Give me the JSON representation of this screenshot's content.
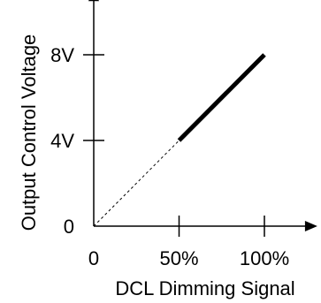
{
  "chart_data": {
    "type": "line",
    "xlabel": "DCL Dimming Signal",
    "ylabel": "Output Control Voltage",
    "x_ticks": [
      {
        "value": 0,
        "label": "0"
      },
      {
        "value": 50,
        "label": "50%"
      },
      {
        "value": 100,
        "label": "100%"
      }
    ],
    "y_ticks": [
      {
        "value": 0,
        "label": "0"
      },
      {
        "value": 4,
        "label": "4V"
      },
      {
        "value": 8,
        "label": "8V"
      }
    ],
    "xlim": [
      0,
      130
    ],
    "ylim": [
      0,
      11
    ],
    "grid": false,
    "series": [
      {
        "style": "dashed",
        "points": [
          [
            0,
            0
          ],
          [
            50,
            4
          ]
        ]
      },
      {
        "style": "solid-bold",
        "points": [
          [
            50,
            4
          ],
          [
            100,
            8
          ]
        ]
      }
    ]
  }
}
